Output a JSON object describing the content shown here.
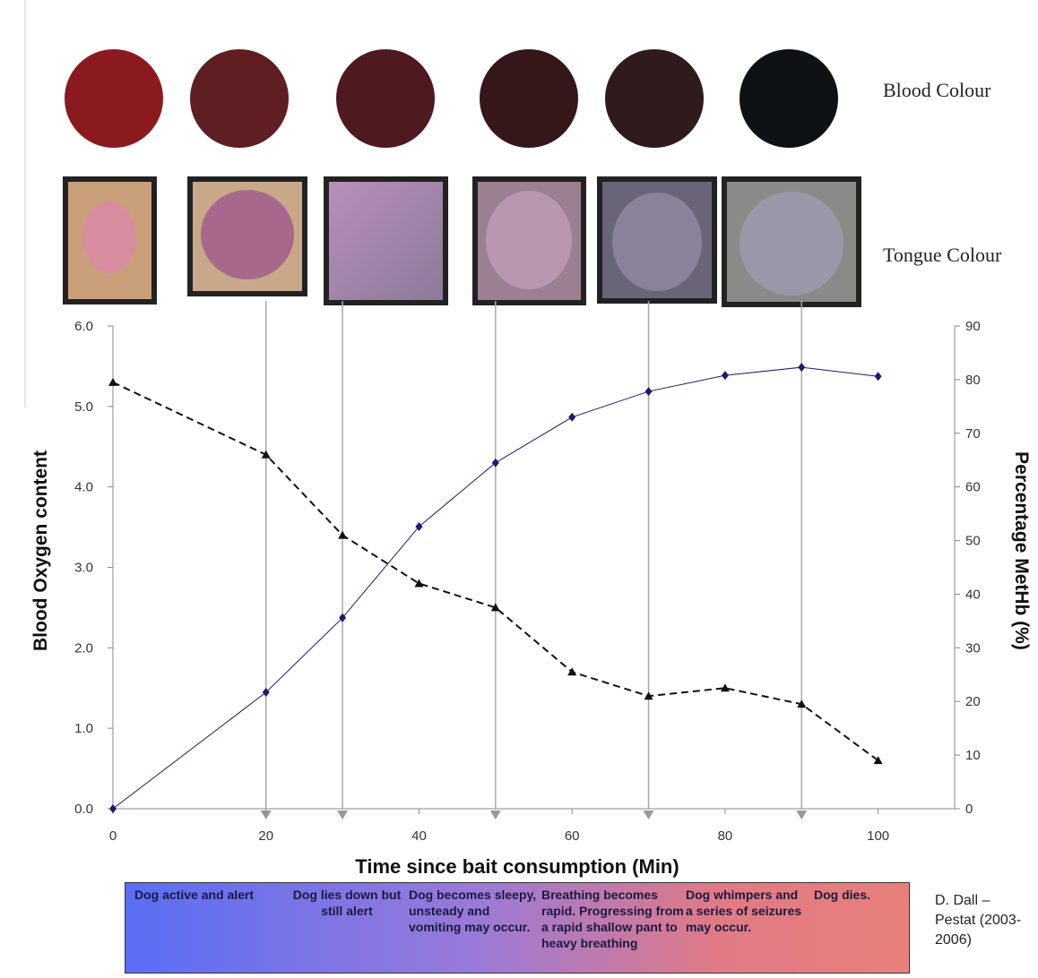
{
  "images": {
    "blood_label": "Blood Colour",
    "tongue_label": "Tongue Colour",
    "blood_colours": [
      "#8b1a1e",
      "#5e1e22",
      "#4e1a1f",
      "#351719",
      "#2f1b1b",
      "#0e1214"
    ]
  },
  "chart_data": {
    "type": "line",
    "x": [
      0,
      20,
      30,
      40,
      50,
      60,
      70,
      80,
      90,
      100
    ],
    "xlabel": "Time since bait consumption (Min)",
    "ylabel": "Blood Oxygen content",
    "y2label": "Percentage  MetHb (%)",
    "xlim": [
      0,
      110
    ],
    "xticks": [
      0,
      20,
      40,
      60,
      80,
      100
    ],
    "ylim": [
      0,
      6
    ],
    "yticks": [
      {
        "value": 0,
        "label": "0.0"
      },
      {
        "value": 1,
        "label": "1.0"
      },
      {
        "value": 2,
        "label": "2.0"
      },
      {
        "value": 3,
        "label": "3.0"
      },
      {
        "value": 4,
        "label": "4.0"
      },
      {
        "value": 5,
        "label": "5.0"
      },
      {
        "value": 6,
        "label": "6.0"
      }
    ],
    "y2lim": [
      0,
      90
    ],
    "y2ticks": [
      0,
      10,
      20,
      30,
      40,
      50,
      60,
      70,
      80,
      90
    ],
    "reference_x": [
      20,
      30,
      50,
      70,
      90
    ],
    "series": [
      {
        "color": "#111111",
        "dashed": true,
        "marker": "triangle",
        "values": [
          5.3,
          4.4,
          3.4,
          2.8,
          2.5,
          1.7,
          1.4,
          1.5,
          1.3,
          0.6
        ]
      },
      {
        "color": "#1a1a6e",
        "dashed": false,
        "marker": "diamond",
        "axis": "y2",
        "values": [
          0,
          21.7,
          35.6,
          52.6,
          64.5,
          73,
          77.8,
          80.8,
          82.3,
          80.6
        ]
      }
    ]
  },
  "stages": [
    "Dog active and alert",
    "Dog lies down but still alert",
    "Dog becomes sleepy, unsteady and vomiting may occur.",
    "Breathing becomes rapid. Progressing from a rapid shallow pant to heavy breathing",
    "Dog whimpers and a series of seizures may occur.",
    "Dog dies."
  ],
  "credit": "D. Dall – Pestat (2003-2006)"
}
